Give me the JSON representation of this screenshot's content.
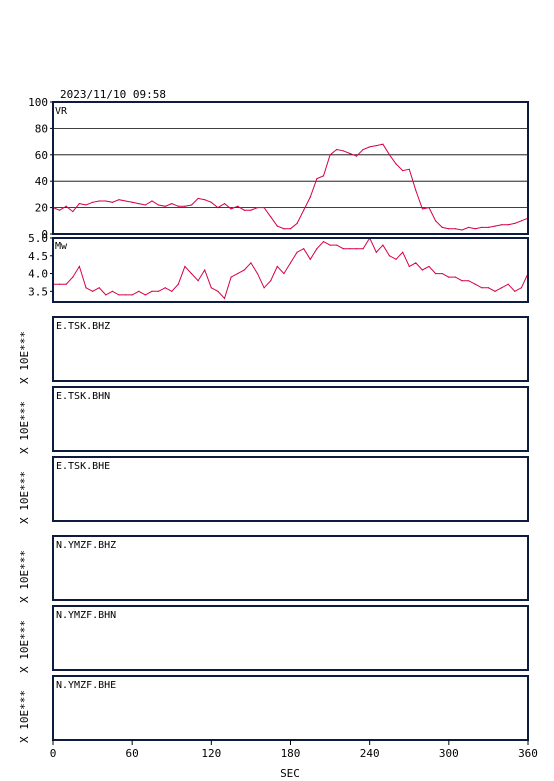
{
  "header": {
    "timestamp": "2023/11/10 09:58"
  },
  "colors": {
    "frame": "#0d1b3e",
    "series": "#d6004a"
  },
  "x_axis": {
    "label": "SEC",
    "range": [
      0,
      360
    ],
    "ticks": [
      0,
      60,
      120,
      180,
      240,
      300,
      360
    ]
  },
  "chart_data": [
    {
      "type": "line",
      "id": "vr",
      "title": "VR",
      "ylim": [
        0,
        100
      ],
      "yticks": [
        0,
        20,
        40,
        60,
        80,
        100
      ],
      "ytick_labels": [
        "0",
        "20",
        "40",
        "60",
        "80",
        "100"
      ],
      "grid": true,
      "x": [
        0,
        5,
        10,
        15,
        20,
        25,
        30,
        35,
        40,
        45,
        50,
        55,
        60,
        65,
        70,
        75,
        80,
        85,
        90,
        95,
        100,
        105,
        110,
        115,
        120,
        125,
        130,
        135,
        140,
        145,
        150,
        155,
        160,
        165,
        170,
        175,
        180,
        185,
        190,
        195,
        200,
        205,
        210,
        215,
        220,
        225,
        230,
        235,
        240,
        245,
        250,
        255,
        260,
        265,
        270,
        275,
        280,
        285,
        290,
        295,
        300,
        305,
        310,
        315,
        320,
        325,
        330,
        335,
        340,
        345,
        350,
        355,
        360
      ],
      "values": [
        20,
        18,
        21,
        17,
        23,
        22,
        24,
        25,
        25,
        24,
        26,
        25,
        24,
        23,
        22,
        25,
        22,
        21,
        23,
        21,
        21,
        22,
        27,
        26,
        24,
        20,
        23,
        19,
        21,
        18,
        18,
        20,
        20,
        13,
        6,
        4,
        4,
        8,
        18,
        28,
        42,
        44,
        60,
        64,
        63,
        61,
        59,
        64,
        66,
        67,
        68,
        60,
        53,
        48,
        49,
        33,
        19,
        20,
        10,
        5,
        4,
        4,
        3,
        5,
        4,
        5,
        5,
        6,
        7,
        7,
        8,
        10,
        12
      ]
    },
    {
      "type": "line",
      "id": "mw",
      "title": "Mw",
      "ylim": [
        3.2,
        5.0
      ],
      "yticks": [
        3.5,
        4.0,
        4.5,
        5.0
      ],
      "ytick_labels": [
        "3.5",
        "4.0",
        "4.5",
        "5.0"
      ],
      "grid": false,
      "x": [
        0,
        5,
        10,
        15,
        20,
        25,
        30,
        35,
        40,
        45,
        50,
        55,
        60,
        65,
        70,
        75,
        80,
        85,
        90,
        95,
        100,
        105,
        110,
        115,
        120,
        125,
        130,
        135,
        140,
        145,
        150,
        155,
        160,
        165,
        170,
        175,
        180,
        185,
        190,
        195,
        200,
        205,
        210,
        215,
        220,
        225,
        230,
        235,
        240,
        245,
        250,
        255,
        260,
        265,
        270,
        275,
        280,
        285,
        290,
        295,
        300,
        305,
        310,
        315,
        320,
        325,
        330,
        335,
        340,
        345,
        350,
        355,
        360
      ],
      "values": [
        3.7,
        3.7,
        3.7,
        3.9,
        4.2,
        3.6,
        3.5,
        3.6,
        3.4,
        3.5,
        3.4,
        3.4,
        3.4,
        3.5,
        3.4,
        3.5,
        3.5,
        3.6,
        3.5,
        3.7,
        4.2,
        4.0,
        3.8,
        4.1,
        3.6,
        3.5,
        3.3,
        3.9,
        4.0,
        4.1,
        4.3,
        4.0,
        3.6,
        3.8,
        4.2,
        4.0,
        4.3,
        4.6,
        4.7,
        4.4,
        4.7,
        4.9,
        4.8,
        4.8,
        4.7,
        4.7,
        4.7,
        4.7,
        5.0,
        4.6,
        4.8,
        4.5,
        4.4,
        4.6,
        4.2,
        4.3,
        4.1,
        4.2,
        4.0,
        4.0,
        3.9,
        3.9,
        3.8,
        3.8,
        3.7,
        3.6,
        3.6,
        3.5,
        3.6,
        3.7,
        3.5,
        3.6,
        4.0
      ]
    }
  ],
  "waveform_panels": [
    {
      "station": "E.TSK.BHZ",
      "ylabel": "X 10E***"
    },
    {
      "station": "E.TSK.BHN",
      "ylabel": "X 10E***"
    },
    {
      "station": "E.TSK.BHE",
      "ylabel": "X 10E***"
    },
    {
      "station": "N.YMZF.BHZ",
      "ylabel": "X 10E***"
    },
    {
      "station": "N.YMZF.BHN",
      "ylabel": "X 10E***"
    },
    {
      "station": "N.YMZF.BHE",
      "ylabel": "X 10E***"
    }
  ]
}
